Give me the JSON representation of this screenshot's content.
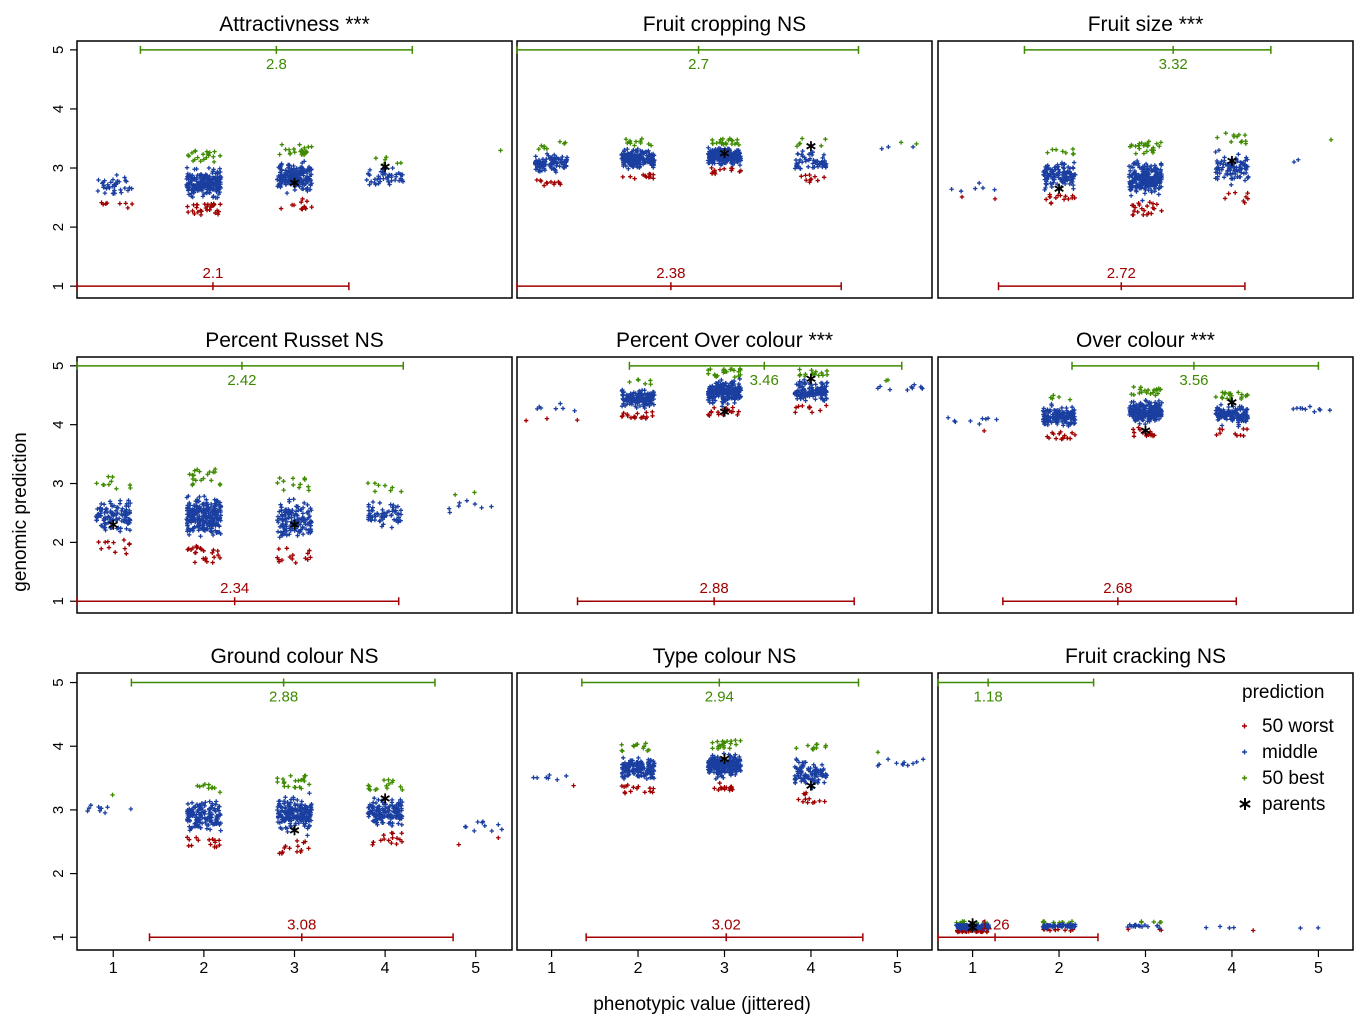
{
  "figure": {
    "ylabel": "genomic prediction",
    "xlabel": "phenotypic value (jittered)"
  },
  "colors": {
    "worst": "#a00000",
    "middle": "#1a3fa0",
    "best": "#3e8a00",
    "parents": "#000000",
    "frame": "#000000"
  },
  "legend": {
    "title": "prediction",
    "items": [
      {
        "key": "worst",
        "label": "50 worst",
        "symbol": "plus"
      },
      {
        "key": "middle",
        "label": "middle",
        "symbol": "plus"
      },
      {
        "key": "best",
        "label": "50 best",
        "symbol": "plus"
      },
      {
        "key": "parents",
        "label": "parents",
        "symbol": "asterisk"
      }
    ]
  },
  "chart_data": [
    {
      "type": "scatter",
      "title": "Attractivness ***",
      "xlim": [
        0.6,
        5.4
      ],
      "ylim": [
        0.8,
        5.15
      ],
      "xticks": [
        1,
        2,
        3,
        4,
        5
      ],
      "yticks": [
        1,
        2,
        3,
        4,
        5
      ],
      "categories": [
        1,
        2,
        3,
        4,
        5
      ],
      "clusters": [
        {
          "x": 1,
          "y": [
            2.3,
            3.1
          ],
          "n": 45,
          "worst": 8,
          "best": 0
        },
        {
          "x": 2,
          "y": [
            2.2,
            3.3
          ],
          "n": 260,
          "worst": 30,
          "best": 20
        },
        {
          "x": 3,
          "y": [
            2.3,
            3.4
          ],
          "n": 230,
          "worst": 12,
          "best": 22
        },
        {
          "x": 4,
          "y": [
            2.45,
            3.2
          ],
          "n": 55,
          "worst": 0,
          "best": 6
        },
        {
          "x": 5,
          "y": [
            3.25,
            3.3
          ],
          "n": 1,
          "worst": 0,
          "best": 1
        }
      ],
      "parents": [
        {
          "x": 3,
          "y": 2.75
        },
        {
          "x": 4,
          "y": 3.02
        }
      ],
      "best_range": {
        "low": 1.3,
        "high": 4.3,
        "mean": 2.8,
        "label": "2.8"
      },
      "worst_range": {
        "low": 0.6,
        "high": 3.6,
        "mean": 2.1,
        "label": "2.1"
      }
    },
    {
      "type": "scatter",
      "title": "Fruit cropping NS",
      "xlim": [
        0.6,
        5.4
      ],
      "ylim": [
        0.8,
        5.15
      ],
      "xticks": [
        1,
        2,
        3,
        4,
        5
      ],
      "yticks": [
        1,
        2,
        3,
        4,
        5
      ],
      "categories": [
        1,
        2,
        3,
        4,
        5
      ],
      "clusters": [
        {
          "x": 1,
          "y": [
            2.7,
            3.45
          ],
          "n": 120,
          "worst": 12,
          "best": 8
        },
        {
          "x": 2,
          "y": [
            2.8,
            3.5
          ],
          "n": 200,
          "worst": 12,
          "best": 12
        },
        {
          "x": 3,
          "y": [
            2.9,
            3.5
          ],
          "n": 280,
          "worst": 14,
          "best": 22
        },
        {
          "x": 4,
          "y": [
            2.75,
            3.5
          ],
          "n": 70,
          "worst": 10,
          "best": 6
        },
        {
          "x": 5,
          "y": [
            3.2,
            3.45
          ],
          "n": 5,
          "worst": 0,
          "best": 2
        }
      ],
      "parents": [
        {
          "x": 3,
          "y": 3.25
        },
        {
          "x": 4,
          "y": 3.37
        }
      ],
      "best_range": {
        "low": 0.6,
        "high": 4.55,
        "mean": 2.7,
        "label": "2.7"
      },
      "worst_range": {
        "low": 0.6,
        "high": 4.35,
        "mean": 2.38,
        "label": "2.38"
      }
    },
    {
      "type": "scatter",
      "title": "Fruit size ***",
      "xlim": [
        0.6,
        5.4
      ],
      "ylim": [
        0.8,
        5.15
      ],
      "xticks": [
        1,
        2,
        3,
        4,
        5
      ],
      "yticks": [
        1,
        2,
        3,
        4,
        5
      ],
      "categories": [
        1,
        2,
        3,
        4,
        5
      ],
      "clusters": [
        {
          "x": 1,
          "y": [
            2.45,
            2.85
          ],
          "n": 8,
          "worst": 2,
          "best": 0
        },
        {
          "x": 2,
          "y": [
            2.4,
            3.35
          ],
          "n": 150,
          "worst": 15,
          "best": 8
        },
        {
          "x": 3,
          "y": [
            2.2,
            3.45
          ],
          "n": 280,
          "worst": 22,
          "best": 25
        },
        {
          "x": 4,
          "y": [
            2.4,
            3.6
          ],
          "n": 110,
          "worst": 8,
          "best": 12
        },
        {
          "x": 5,
          "y": [
            2.55,
            3.55
          ],
          "n": 3,
          "worst": 0,
          "best": 1
        }
      ],
      "parents": [
        {
          "x": 2,
          "y": 2.65
        },
        {
          "x": 4,
          "y": 3.12
        }
      ],
      "best_range": {
        "low": 1.6,
        "high": 4.45,
        "mean": 3.32,
        "label": "3.32"
      },
      "worst_range": {
        "low": 1.3,
        "high": 4.15,
        "mean": 2.72,
        "label": "2.72"
      }
    },
    {
      "type": "scatter",
      "title": "Percent Russet NS",
      "xlim": [
        0.6,
        5.4
      ],
      "ylim": [
        0.8,
        5.15
      ],
      "xticks": [
        1,
        2,
        3,
        4,
        5
      ],
      "yticks": [
        1,
        2,
        3,
        4,
        5
      ],
      "categories": [
        1,
        2,
        3,
        4,
        5
      ],
      "clusters": [
        {
          "x": 1,
          "y": [
            1.8,
            3.15
          ],
          "n": 130,
          "worst": 12,
          "best": 10
        },
        {
          "x": 2,
          "y": [
            1.65,
            3.25
          ],
          "n": 300,
          "worst": 25,
          "best": 20
        },
        {
          "x": 3,
          "y": [
            1.65,
            3.1
          ],
          "n": 170,
          "worst": 15,
          "best": 12
        },
        {
          "x": 4,
          "y": [
            1.9,
            3.05
          ],
          "n": 70,
          "worst": 0,
          "best": 8
        },
        {
          "x": 5,
          "y": [
            2.3,
            2.9
          ],
          "n": 10,
          "worst": 0,
          "best": 2
        }
      ],
      "parents": [
        {
          "x": 1,
          "y": 2.3
        },
        {
          "x": 3,
          "y": 2.3
        }
      ],
      "best_range": {
        "low": 0.6,
        "high": 4.2,
        "mean": 2.42,
        "label": "2.42"
      },
      "worst_range": {
        "low": 0.6,
        "high": 4.15,
        "mean": 2.34,
        "label": "2.34"
      }
    },
    {
      "type": "scatter",
      "title": "Percent Over colour ***",
      "xlim": [
        0.6,
        5.4
      ],
      "ylim": [
        0.8,
        5.15
      ],
      "xticks": [
        1,
        2,
        3,
        4,
        5
      ],
      "yticks": [
        1,
        2,
        3,
        4,
        5
      ],
      "categories": [
        1,
        2,
        3,
        4,
        5
      ],
      "clusters": [
        {
          "x": 1,
          "y": [
            4.05,
            4.55
          ],
          "n": 10,
          "worst": 3,
          "best": 0
        },
        {
          "x": 2,
          "y": [
            4.1,
            4.8
          ],
          "n": 170,
          "worst": 18,
          "best": 6
        },
        {
          "x": 3,
          "y": [
            4.15,
            4.95
          ],
          "n": 260,
          "worst": 18,
          "best": 22
        },
        {
          "x": 4,
          "y": [
            4.2,
            4.95
          ],
          "n": 150,
          "worst": 10,
          "best": 15
        },
        {
          "x": 5,
          "y": [
            4.45,
            4.8
          ],
          "n": 12,
          "worst": 0,
          "best": 2
        }
      ],
      "parents": [
        {
          "x": 3,
          "y": 4.22
        },
        {
          "x": 4,
          "y": 4.78
        }
      ],
      "best_range": {
        "low": 1.9,
        "high": 5.05,
        "mean": 3.46,
        "label": "3.46"
      },
      "worst_range": {
        "low": 1.3,
        "high": 4.5,
        "mean": 2.88,
        "label": "2.88"
      }
    },
    {
      "type": "scatter",
      "title": "Over colour ***",
      "xlim": [
        0.6,
        5.4
      ],
      "ylim": [
        0.8,
        5.15
      ],
      "xticks": [
        1,
        2,
        3,
        4,
        5
      ],
      "yticks": [
        1,
        2,
        3,
        4,
        5
      ],
      "categories": [
        1,
        2,
        3,
        4,
        5
      ],
      "clusters": [
        {
          "x": 1,
          "y": [
            3.8,
            4.35
          ],
          "n": 10,
          "worst": 1,
          "best": 0
        },
        {
          "x": 2,
          "y": [
            3.75,
            4.55
          ],
          "n": 170,
          "worst": 15,
          "best": 5
        },
        {
          "x": 3,
          "y": [
            3.8,
            4.65
          ],
          "n": 250,
          "worst": 15,
          "best": 20
        },
        {
          "x": 4,
          "y": [
            3.8,
            4.55
          ],
          "n": 160,
          "worst": 10,
          "best": 20
        },
        {
          "x": 5,
          "y": [
            4.15,
            4.4
          ],
          "n": 10,
          "worst": 0,
          "best": 0
        }
      ],
      "parents": [
        {
          "x": 3,
          "y": 3.9
        },
        {
          "x": 4,
          "y": 4.38
        }
      ],
      "best_range": {
        "low": 2.15,
        "high": 5.0,
        "mean": 3.56,
        "label": "3.56"
      },
      "worst_range": {
        "low": 1.35,
        "high": 4.05,
        "mean": 2.68,
        "label": "2.68"
      }
    },
    {
      "type": "scatter",
      "title": "Ground colour NS",
      "xlim": [
        0.6,
        5.4
      ],
      "ylim": [
        0.8,
        5.15
      ],
      "xticks": [
        1,
        2,
        3,
        4,
        5
      ],
      "yticks": [
        1,
        2,
        3,
        4,
        5
      ],
      "categories": [
        1,
        2,
        3,
        4,
        5
      ],
      "clusters": [
        {
          "x": 1,
          "y": [
            2.65,
            3.3
          ],
          "n": 10,
          "worst": 0,
          "best": 1
        },
        {
          "x": 2,
          "y": [
            2.4,
            3.45
          ],
          "n": 180,
          "worst": 15,
          "best": 10
        },
        {
          "x": 3,
          "y": [
            2.3,
            3.55
          ],
          "n": 230,
          "worst": 15,
          "best": 20
        },
        {
          "x": 4,
          "y": [
            2.45,
            3.5
          ],
          "n": 170,
          "worst": 15,
          "best": 15
        },
        {
          "x": 5,
          "y": [
            2.45,
            3.1
          ],
          "n": 12,
          "worst": 2,
          "best": 0
        }
      ],
      "parents": [
        {
          "x": 3,
          "y": 2.68
        },
        {
          "x": 4,
          "y": 3.18
        }
      ],
      "best_range": {
        "low": 1.2,
        "high": 4.55,
        "mean": 2.88,
        "label": "2.88"
      },
      "worst_range": {
        "low": 1.4,
        "high": 4.75,
        "mean": 3.08,
        "label": "3.08"
      }
    },
    {
      "type": "scatter",
      "title": "Type colour NS",
      "xlim": [
        0.6,
        5.4
      ],
      "ylim": [
        0.8,
        5.15
      ],
      "xticks": [
        1,
        2,
        3,
        4,
        5
      ],
      "yticks": [
        1,
        2,
        3,
        4,
        5
      ],
      "categories": [
        1,
        2,
        3,
        4,
        5
      ],
      "clusters": [
        {
          "x": 1,
          "y": [
            3.35,
            3.65
          ],
          "n": 8,
          "worst": 1,
          "best": 0
        },
        {
          "x": 2,
          "y": [
            3.25,
            4.05
          ],
          "n": 180,
          "worst": 15,
          "best": 12
        },
        {
          "x": 3,
          "y": [
            3.3,
            4.1
          ],
          "n": 250,
          "worst": 15,
          "best": 20
        },
        {
          "x": 4,
          "y": [
            3.1,
            4.05
          ],
          "n": 120,
          "worst": 12,
          "best": 10
        },
        {
          "x": 5,
          "y": [
            3.5,
            3.95
          ],
          "n": 12,
          "worst": 0,
          "best": 1
        }
      ],
      "parents": [
        {
          "x": 3,
          "y": 3.8
        },
        {
          "x": 4,
          "y": 3.38
        }
      ],
      "best_range": {
        "low": 1.35,
        "high": 4.55,
        "mean": 2.94,
        "label": "2.94"
      },
      "worst_range": {
        "low": 1.4,
        "high": 4.6,
        "mean": 3.02,
        "label": "3.02"
      }
    },
    {
      "type": "scatter",
      "title": "Fruit cracking NS",
      "xlim": [
        0.6,
        5.4
      ],
      "ylim": [
        0.8,
        5.15
      ],
      "xticks": [
        1,
        2,
        3,
        4,
        5
      ],
      "yticks": [
        1,
        2,
        3,
        4,
        5
      ],
      "categories": [
        1,
        2,
        3,
        4,
        5
      ],
      "clusters": [
        {
          "x": 1,
          "y": [
            1.08,
            1.25
          ],
          "n": 220,
          "worst": 30,
          "best": 10
        },
        {
          "x": 2,
          "y": [
            1.1,
            1.25
          ],
          "n": 90,
          "worst": 10,
          "best": 12
        },
        {
          "x": 3,
          "y": [
            1.1,
            1.25
          ],
          "n": 25,
          "worst": 3,
          "best": 5
        },
        {
          "x": 4,
          "y": [
            1.1,
            1.2
          ],
          "n": 5,
          "worst": 1,
          "best": 0
        },
        {
          "x": 5,
          "y": [
            1.12,
            1.17
          ],
          "n": 2,
          "worst": 0,
          "best": 0
        }
      ],
      "parents": [
        {
          "x": 1,
          "y": 1.22
        },
        {
          "x": 1,
          "y": 1.15
        }
      ],
      "best_range": {
        "low": 0.6,
        "high": 2.4,
        "mean": 1.18,
        "label": "1.18"
      },
      "worst_range": {
        "low": 0.6,
        "high": 2.45,
        "mean": 1.26,
        "label": "1.26"
      }
    }
  ]
}
